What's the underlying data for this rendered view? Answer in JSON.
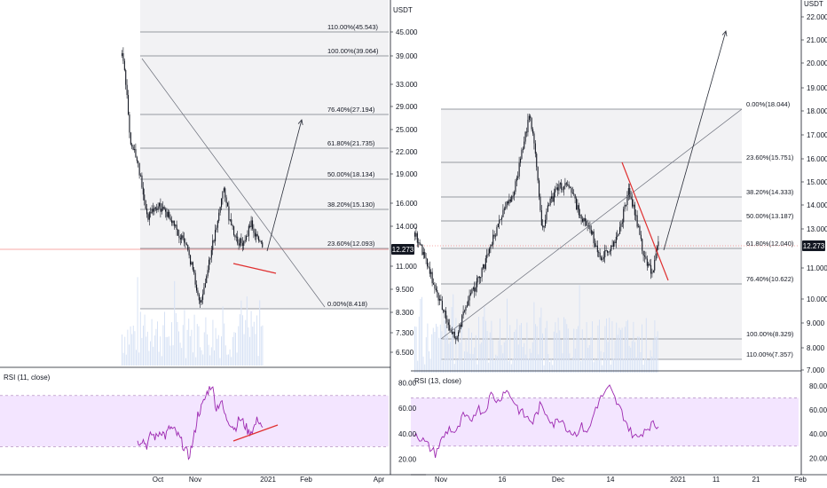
{
  "colors": {
    "background": "#ffffff",
    "divider": "#131722",
    "fib_line": "#787b86",
    "fib_zone": "#f2f2f4",
    "candle": "#131722",
    "trend_red": "#e03030",
    "rsi_line": "#9c27b0",
    "rsi_band": "#f3e5ff",
    "volume": "#d7e2f5",
    "price_tag": "#131722",
    "price_line": "#ef5350"
  },
  "chart_data": [
    {
      "type": "candlestick",
      "panel": "left",
      "currency": "USDT",
      "y_scale": "log",
      "ylim": [
        6.0,
        58.0
      ],
      "y_ticks": [
        "45.000",
        "39.000",
        "33.000",
        "29.000",
        "25.000",
        "22.000",
        "19.000",
        "16.000",
        "14.000",
        "11.000",
        "9.500",
        "8.300",
        "7.300",
        "6.500"
      ],
      "x_ticks": [
        "Oct",
        "Nov",
        "2021",
        "Feb",
        "Apr"
      ],
      "last_price": "12.273",
      "fib_levels": [
        {
          "label": "110.00%(45.543)",
          "value": 45.543
        },
        {
          "label": "100.00%(39.064)",
          "value": 39.064
        },
        {
          "label": "76.40%(27.194)",
          "value": 27.194
        },
        {
          "label": "61.80%(21.735)",
          "value": 21.735
        },
        {
          "label": "50.00%(18.134)",
          "value": 18.134
        },
        {
          "label": "38.20%(15.130)",
          "value": 15.13
        },
        {
          "label": "23.60%(12.093)",
          "value": 12.093
        },
        {
          "label": "0.00%(8.418)",
          "value": 8.418
        }
      ],
      "key_points": [
        {
          "t": "Sep",
          "price": 39.0
        },
        {
          "t": "Sep",
          "price": 23.0
        },
        {
          "t": "Oct",
          "price": 14.0
        },
        {
          "t": "Oct",
          "price": 15.0
        },
        {
          "t": "Oct",
          "price": 12.0
        },
        {
          "t": "Nov",
          "price": 8.4
        },
        {
          "t": "Nov",
          "price": 13.0
        },
        {
          "t": "Dec",
          "price": 17.5
        },
        {
          "t": "Dec",
          "price": 12.0
        },
        {
          "t": "Dec",
          "price": 14.0
        },
        {
          "t": "Dec",
          "price": 12.2
        }
      ],
      "rsi": {
        "label": "RSI (11, close)",
        "y_ticks": [
          "80.00",
          "60.00",
          "40.00",
          "20.00"
        ],
        "ylim": [
          10,
          88
        ],
        "band": [
          30,
          70
        ],
        "values": [
          33,
          36,
          31,
          40,
          37,
          43,
          38,
          45,
          42,
          37,
          30,
          22,
          34,
          55,
          62,
          72,
          79,
          60,
          66,
          53,
          49,
          44,
          52,
          48,
          41,
          44,
          52,
          45
        ]
      }
    },
    {
      "type": "candlestick",
      "panel": "right",
      "currency": "USDT",
      "y_scale": "log",
      "ylim": [
        6.8,
        23.5
      ],
      "y_ticks": [
        "22.000",
        "21.000",
        "20.000",
        "19.000",
        "18.000",
        "17.000",
        "16.000",
        "15.000",
        "14.000",
        "13.000",
        "11.000",
        "10.000",
        "9.000",
        "8.000",
        "7.000"
      ],
      "x_ticks": [
        "Nov",
        "16",
        "Dec",
        "14",
        "2021",
        "11",
        "21",
        "Feb"
      ],
      "last_price": "12.273",
      "fib_levels": [
        {
          "label": "0.00%(18.044)",
          "value": 18.044
        },
        {
          "label": "23.60%(15.751)",
          "value": 15.751
        },
        {
          "label": "38.20%(14.333)",
          "value": 14.333
        },
        {
          "label": "50.00%(13.187)",
          "value": 13.187
        },
        {
          "label": "61.80%(12.040)",
          "value": 12.04
        },
        {
          "label": "76.40%(10.622)",
          "value": 10.622
        },
        {
          "label": "100.00%(8.329)",
          "value": 8.329
        },
        {
          "label": "110.00%(7.357)",
          "value": 7.357
        }
      ],
      "key_points": [
        {
          "t": "Oct",
          "price": 12.8
        },
        {
          "t": "Nov",
          "price": 10.5
        },
        {
          "t": "Nov",
          "price": 8.3
        },
        {
          "t": "Nov",
          "price": 12.5
        },
        {
          "t": "16",
          "price": 14.5
        },
        {
          "t": "16",
          "price": 18.0
        },
        {
          "t": "Dec",
          "price": 12.2
        },
        {
          "t": "Dec",
          "price": 15.0
        },
        {
          "t": "Dec",
          "price": 11.0
        },
        {
          "t": "14",
          "price": 14.8
        },
        {
          "t": "14",
          "price": 11.0
        },
        {
          "t": "14",
          "price": 12.3
        }
      ],
      "rsi": {
        "label": "RSI (13, close)",
        "y_ticks": [
          "80.00",
          "60.00",
          "40.00",
          "20.00"
        ],
        "ylim": [
          10,
          88
        ],
        "band": [
          30,
          70
        ],
        "values": [
          42,
          36,
          30,
          24,
          36,
          45,
          40,
          55,
          50,
          62,
          58,
          73,
          67,
          77,
          70,
          60,
          54,
          50,
          63,
          57,
          48,
          54,
          44,
          40,
          46,
          42,
          62,
          72,
          78,
          66,
          55,
          42,
          36,
          44,
          48,
          46
        ]
      }
    }
  ]
}
